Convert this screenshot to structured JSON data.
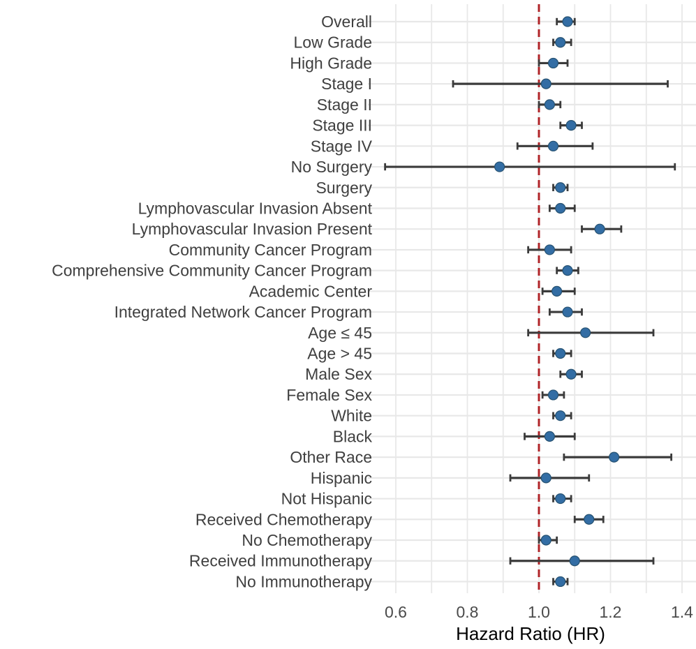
{
  "chart_data": {
    "type": "scatter",
    "variant": "forest_plot",
    "title": "",
    "xlabel": "Hazard Ratio (HR)",
    "ylabel": "",
    "xlim": [
      0.52,
      1.44
    ],
    "x_ticks": {
      "values": [
        0.6,
        0.8,
        1.0,
        1.2,
        1.4
      ],
      "labels": [
        "0.6",
        "0.8",
        "1.0",
        "1.2",
        "1.4"
      ]
    },
    "x_minor_gridlines": [
      0.6,
      0.7,
      0.8,
      0.9,
      1.0,
      1.1,
      1.2,
      1.3,
      1.4
    ],
    "reference_line": {
      "x": 1.0,
      "style": "dashed",
      "color": "#B02428"
    },
    "grid": "on",
    "legend": "none",
    "rows": [
      {
        "label": "Overall",
        "hr": 1.08,
        "ci_low": 1.05,
        "ci_high": 1.1
      },
      {
        "label": "Low Grade",
        "hr": 1.06,
        "ci_low": 1.04,
        "ci_high": 1.09
      },
      {
        "label": "High Grade",
        "hr": 1.04,
        "ci_low": 1.0,
        "ci_high": 1.08
      },
      {
        "label": "Stage I",
        "hr": 1.02,
        "ci_low": 0.76,
        "ci_high": 1.36
      },
      {
        "label": "Stage II",
        "hr": 1.03,
        "ci_low": 1.0,
        "ci_high": 1.06
      },
      {
        "label": "Stage III",
        "hr": 1.09,
        "ci_low": 1.06,
        "ci_high": 1.12
      },
      {
        "label": "Stage IV",
        "hr": 1.04,
        "ci_low": 0.94,
        "ci_high": 1.15
      },
      {
        "label": "No Surgery",
        "hr": 0.89,
        "ci_low": 0.57,
        "ci_high": 1.38
      },
      {
        "label": "Surgery",
        "hr": 1.06,
        "ci_low": 1.04,
        "ci_high": 1.08
      },
      {
        "label": "Lymphovascular Invasion Absent",
        "hr": 1.06,
        "ci_low": 1.03,
        "ci_high": 1.1
      },
      {
        "label": "Lymphovascular Invasion Present",
        "hr": 1.17,
        "ci_low": 1.12,
        "ci_high": 1.23
      },
      {
        "label": "Community Cancer Program",
        "hr": 1.03,
        "ci_low": 0.97,
        "ci_high": 1.09
      },
      {
        "label": "Comprehensive Community Cancer Program",
        "hr": 1.08,
        "ci_low": 1.05,
        "ci_high": 1.11
      },
      {
        "label": "Academic Center",
        "hr": 1.05,
        "ci_low": 1.01,
        "ci_high": 1.1
      },
      {
        "label": "Integrated Network Cancer Program",
        "hr": 1.08,
        "ci_low": 1.03,
        "ci_high": 1.12
      },
      {
        "label": "Age ≤ 45",
        "hr": 1.13,
        "ci_low": 0.97,
        "ci_high": 1.32
      },
      {
        "label": "Age > 45",
        "hr": 1.06,
        "ci_low": 1.04,
        "ci_high": 1.09
      },
      {
        "label": "Male Sex",
        "hr": 1.09,
        "ci_low": 1.06,
        "ci_high": 1.12
      },
      {
        "label": "Female Sex",
        "hr": 1.04,
        "ci_low": 1.01,
        "ci_high": 1.07
      },
      {
        "label": "White",
        "hr": 1.06,
        "ci_low": 1.04,
        "ci_high": 1.09
      },
      {
        "label": "Black",
        "hr": 1.03,
        "ci_low": 0.96,
        "ci_high": 1.1
      },
      {
        "label": "Other Race",
        "hr": 1.21,
        "ci_low": 1.07,
        "ci_high": 1.37
      },
      {
        "label": "Hispanic",
        "hr": 1.02,
        "ci_low": 0.92,
        "ci_high": 1.14
      },
      {
        "label": "Not Hispanic",
        "hr": 1.06,
        "ci_low": 1.04,
        "ci_high": 1.09
      },
      {
        "label": "Received Chemotherapy",
        "hr": 1.14,
        "ci_low": 1.1,
        "ci_high": 1.18
      },
      {
        "label": "No Chemotherapy",
        "hr": 1.02,
        "ci_low": 1.0,
        "ci_high": 1.05
      },
      {
        "label": "Received Immunotherapy",
        "hr": 1.1,
        "ci_low": 0.92,
        "ci_high": 1.32
      },
      {
        "label": "No Immunotherapy",
        "hr": 1.06,
        "ci_low": 1.04,
        "ci_high": 1.08
      }
    ],
    "style": {
      "point_color": "#336DA4",
      "point_border_color": "#265170",
      "errorbar_color": "#3B3B3B",
      "grid_color": "#E8E8E8",
      "label_color": "#3F3F3F",
      "tick_label_color": "#4A4A4A",
      "axis_title_color": "#000000",
      "background": "#FFFFFF"
    }
  }
}
